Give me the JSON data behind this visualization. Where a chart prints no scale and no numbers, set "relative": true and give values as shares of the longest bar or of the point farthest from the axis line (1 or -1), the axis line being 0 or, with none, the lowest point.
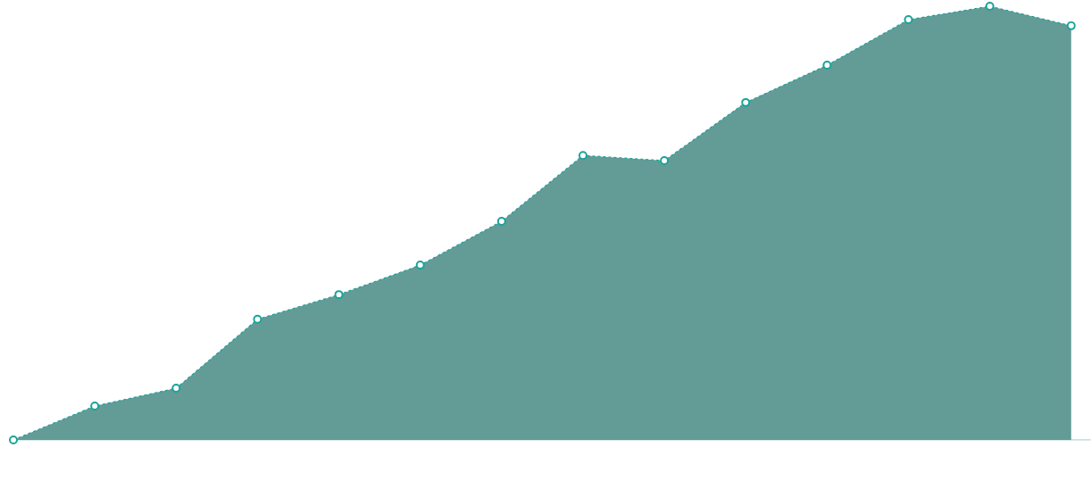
{
  "chart_data": {
    "type": "area",
    "relative": true,
    "categories": [
      null,
      null,
      null,
      null,
      null,
      null,
      null,
      null,
      null,
      null,
      null,
      null,
      null,
      null
    ],
    "series": [
      {
        "color": "#1aa39a",
        "values": [
          0,
          0.078,
          0.119,
          0.278,
          0.335,
          0.403,
          0.504,
          0.656,
          0.644,
          0.778,
          0.864,
          0.969,
          1,
          0.955
        ]
      }
    ],
    "marker": "circle",
    "line_style": "dashed"
  }
}
